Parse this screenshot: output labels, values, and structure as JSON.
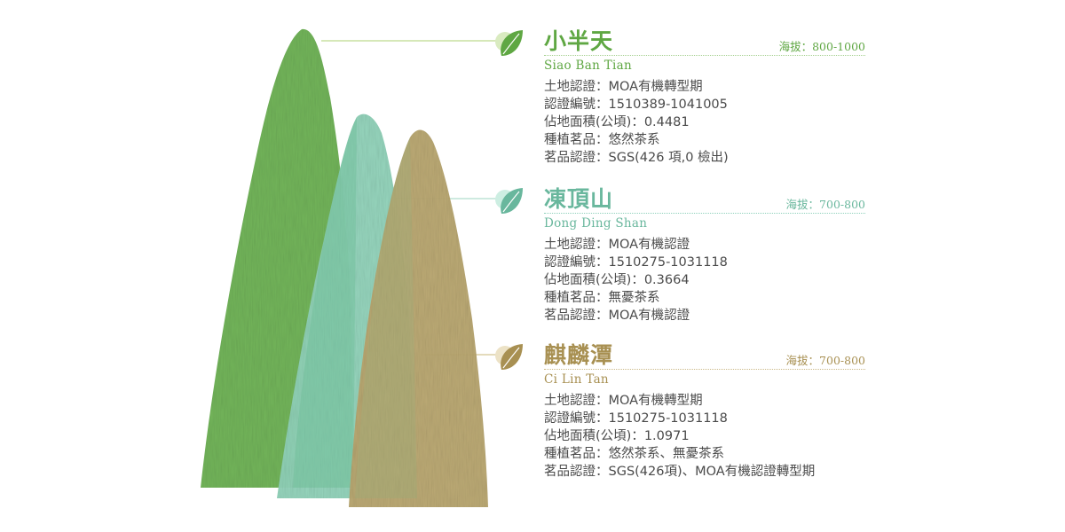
{
  "entries": [
    {
      "title": "小半天",
      "subtitle": "Siao Ban Tian",
      "altitude": "海拔：800-1000",
      "color": "#5fa743",
      "details": [
        "土地認證：MOA有機轉型期",
        "認證編號：1510389-1041005",
        "佔地面積(公頃)：0.4481",
        "種植茗品：悠然茶系",
        "茗品認證：SGS(426 項,0 檢出)"
      ]
    },
    {
      "title": "凍頂山",
      "subtitle": "Dong Ding Shan",
      "altitude": "海拔：700-800",
      "color": "#69b79d",
      "details": [
        "土地認證：MOA有機認證",
        "認證編號：1510275-1031118",
        "佔地面積(公頃)：0.3664",
        "種植茗品：無憂茶系",
        "茗品認證：MOA有機認證"
      ]
    },
    {
      "title": "麒麟潭",
      "subtitle": "Ci Lin Tan",
      "altitude": "海拔：700-800",
      "color": "#a89052",
      "details": [
        "土地認證：MOA有機轉型期",
        "認證編號：1510275-1031118",
        "佔地面積(公頃)：1.0971",
        "種植茗品：悠然茶系、無憂茶系",
        "茗品認證：SGS(426項)、MOA有機認證轉型期"
      ]
    }
  ],
  "icons": [
    "leaf-icon",
    "leaf-icon",
    "leaf-icon"
  ],
  "colors": {
    "green_mountain": "#72b45a",
    "teal_mountain": "#8fd2b8",
    "tan_mountain": "#b8a66e"
  }
}
